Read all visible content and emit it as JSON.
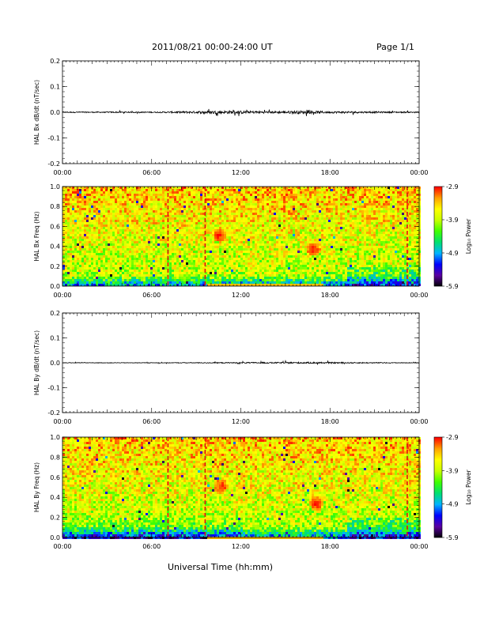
{
  "header": {
    "title": "2011/08/21  00:00-24:00 UT",
    "page": "Page 1/1"
  },
  "footer": {
    "xlabel": "Universal Time (hh:mm)"
  },
  "colorbar": {
    "label": "Log₁₀ Power",
    "ticks": [
      "-2.9",
      "-3.9",
      "-4.9",
      "-5.9"
    ],
    "tick_values": [
      -2.9,
      -3.9,
      -4.9,
      -5.9
    ],
    "range": [
      -5.9,
      -2.9
    ],
    "palette": [
      "#000000",
      "#5a00a0",
      "#0000ff",
      "#00b4ff",
      "#00e070",
      "#40ff00",
      "#c8ff00",
      "#ffff00",
      "#ffa000",
      "#ff0000"
    ]
  },
  "time_ticks": [
    "00:00",
    "06:00",
    "12:00",
    "18:00",
    "00:00"
  ],
  "chart_data": [
    {
      "type": "line",
      "panel": "Bx dB/dt",
      "ylabel": "HAL Bx dB/dt (nT/sec)",
      "xlim": [
        0,
        24
      ],
      "ylim": [
        -0.2,
        0.2
      ],
      "yticks": [
        "0.2",
        "0.1",
        "0.0",
        "-0.1",
        "-0.2"
      ],
      "ytick_values": [
        0.2,
        0.1,
        0.0,
        -0.1,
        -0.2
      ],
      "noise_level": [
        {
          "x": 0,
          "amp": 0.002
        },
        {
          "x": 6,
          "amp": 0.002
        },
        {
          "x": 8.5,
          "amp": 0.004
        },
        {
          "x": 11,
          "amp": 0.006
        },
        {
          "x": 14,
          "amp": 0.004
        },
        {
          "x": 16,
          "amp": 0.006
        },
        {
          "x": 18,
          "amp": 0.004
        },
        {
          "x": 24,
          "amp": 0.002
        }
      ]
    },
    {
      "type": "heatmap",
      "panel": "Bx spectrogram",
      "ylabel": "HAL Bx Freq (Hz)",
      "xlim": [
        0,
        24
      ],
      "ylim": [
        0,
        1.0
      ],
      "yticks": [
        "1.0",
        "0.8",
        "0.6",
        "0.4",
        "0.2",
        "0.0"
      ],
      "ytick_values": [
        1.0,
        0.8,
        0.6,
        0.4,
        0.2,
        0.0
      ],
      "dashed_lines_hours": [
        7.1,
        9.6,
        23.2
      ],
      "features": [
        {
          "t": 16.8,
          "f": 0.38,
          "note": "red patch"
        },
        {
          "t": 10.5,
          "f": 0.52,
          "note": "orange spot"
        }
      ]
    },
    {
      "type": "line",
      "panel": "By dB/dt",
      "ylabel": "HAL By dB/dt (nT/sec)",
      "xlim": [
        0,
        24
      ],
      "ylim": [
        -0.2,
        0.2
      ],
      "yticks": [
        "0.2",
        "0.1",
        "0.0",
        "-0.1",
        "-0.2"
      ],
      "ytick_values": [
        0.2,
        0.1,
        0.0,
        -0.1,
        -0.2
      ],
      "noise_level": [
        {
          "x": 0,
          "amp": 0.001
        },
        {
          "x": 6,
          "amp": 0.001
        },
        {
          "x": 12,
          "amp": 0.002
        },
        {
          "x": 16,
          "amp": 0.003
        },
        {
          "x": 24,
          "amp": 0.001
        }
      ]
    },
    {
      "type": "heatmap",
      "panel": "By spectrogram",
      "ylabel": "HAL By Freq (Hz)",
      "xlim": [
        0,
        24
      ],
      "ylim": [
        0,
        1.0
      ],
      "yticks": [
        "1.0",
        "0.8",
        "0.6",
        "0.4",
        "0.2",
        "0.0"
      ],
      "ytick_values": [
        1.0,
        0.8,
        0.6,
        0.4,
        0.2,
        0.0
      ],
      "dashed_lines_hours": [
        7.1,
        9.6,
        23.2
      ],
      "features": [
        {
          "t": 17.0,
          "f": 0.35,
          "note": "red patch"
        },
        {
          "t": 10.6,
          "f": 0.52,
          "note": "orange spot"
        }
      ]
    }
  ]
}
